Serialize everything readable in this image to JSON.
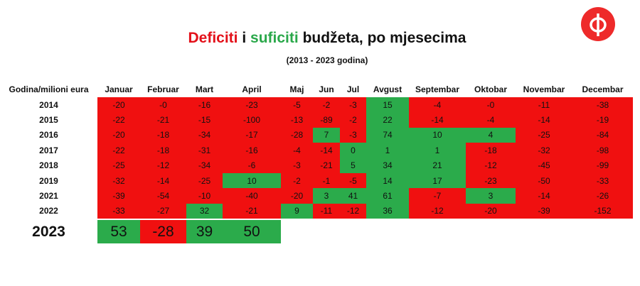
{
  "header": {
    "title": [
      {
        "text": "Deficiti",
        "color": "#e3111a"
      },
      {
        "text": "i",
        "color": "#111111"
      },
      {
        "text": "suficiti",
        "color": "#2aa84a"
      },
      {
        "text": "budžeta, po mjesecima",
        "color": "#111111"
      }
    ],
    "subtitle": "(2013 - 2023 godina)"
  },
  "colors": {
    "deficit": "#f01010",
    "surplus": "#2bab4b"
  },
  "table": {
    "corner": "Godina/milioni eura",
    "columns": [
      "Januar",
      "Februar",
      "Mart",
      "April",
      "Maj",
      "Jun",
      "Jul",
      "Avgust",
      "Septembar",
      "Oktobar",
      "Novembar",
      "Decembar"
    ],
    "rows": [
      [
        "2014",
        "-20",
        "-0",
        "-16",
        "-23",
        "-5",
        "-2",
        "-3",
        "15",
        "-4",
        "-0",
        "-11",
        "-38"
      ],
      [
        "2015",
        "-22",
        "-21",
        "-15",
        "-100",
        "-13",
        "-89",
        "-2",
        "22",
        "-14",
        "-4",
        "-14",
        "-19"
      ],
      [
        "2016",
        "-20",
        "-18",
        "-34",
        "-17",
        "-28",
        "7",
        "-3",
        "74",
        "10",
        "4",
        "-25",
        "-84"
      ],
      [
        "2017",
        "-22",
        "-18",
        "-31",
        "-16",
        "-4",
        "-14",
        "0",
        "1",
        "1",
        "-18",
        "-32",
        "-98"
      ],
      [
        "2018",
        "-25",
        "-12",
        "-34",
        "-6",
        "-3",
        "-21",
        "5",
        "34",
        "21",
        "-12",
        "-45",
        "-99"
      ],
      [
        "2019",
        "-32",
        "-14",
        "-25",
        "10",
        "-2",
        "-1",
        "-5",
        "14",
        "17",
        "-23",
        "-50",
        "-33"
      ],
      [
        "2021",
        "-39",
        "-54",
        "-10",
        "-40",
        "-20",
        "3",
        "41",
        "61",
        "-7",
        "3",
        "-14",
        "-26"
      ],
      [
        "2022",
        "-33",
        "-27",
        "32",
        "-21",
        "9",
        "-11",
        "-12",
        "36",
        "-12",
        "-20",
        "-39",
        "-152"
      ]
    ],
    "highlight_row": [
      "2023",
      "53",
      "-28",
      "39",
      "50"
    ]
  }
}
